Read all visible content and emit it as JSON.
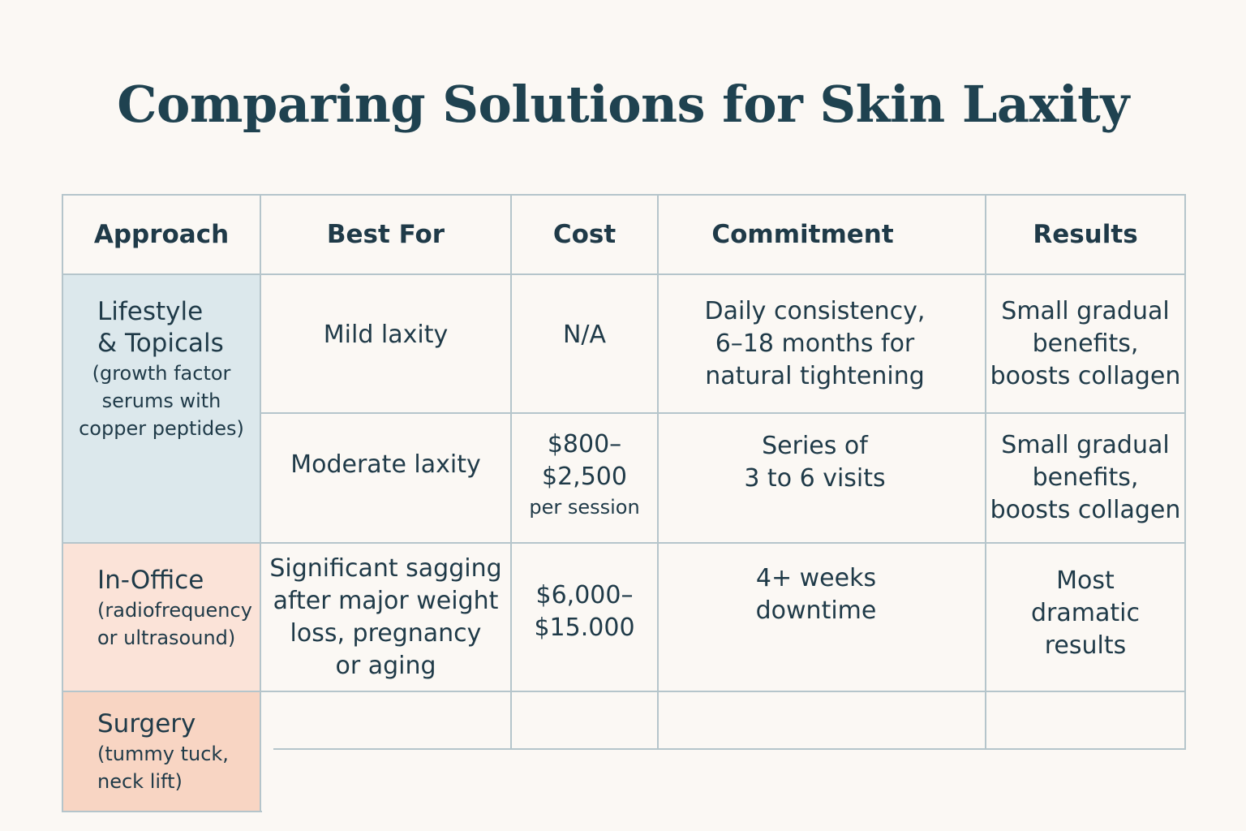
{
  "title": "Comparing Solutions for Skin Laxity",
  "colors": {
    "lifestyle_fill": "#dce8ec",
    "inoffice_fill": "#fbe3d8",
    "surgery_fill": "#f8d5c3",
    "grid": "#b5c5cb",
    "text": "#1f3a48"
  },
  "headers": {
    "approach": "Approach",
    "best_for": "Best For",
    "cost": "Cost",
    "commitment": "Commitment",
    "results": "Results"
  },
  "approaches": {
    "lifestyle": {
      "name": "Lifestyle\n& Topicals",
      "detail": "(growth factor\nserums with\ncopper peptides)"
    },
    "inoffice": {
      "name": "In-Office",
      "detail": "(radiofrequency\nor ultrasound)"
    },
    "surgery": {
      "name": "Surgery",
      "detail": "(tummy tuck,\nneck lift)"
    }
  },
  "rows": [
    {
      "best_for": "Mild laxity",
      "cost": "N/A",
      "commitment": "Daily consistency,\n6–18 months for\nnatural tightening",
      "results": "Small gradual\nbenefits,\nboosts collagen"
    },
    {
      "best_for": "Moderate laxity",
      "cost_main": "$800–\n$2,500",
      "cost_note": "per session",
      "commitment": "Series of\n3 to 6 visits",
      "results": "Small gradual\nbenefits,\nboosts collagen"
    },
    {
      "best_for": "Significant sagging\nafter major weight\nloss, pregnancy\nor aging",
      "cost": "$6,000–\n$15.000",
      "commitment": "4+ weeks\ndowntime",
      "results": "Most\ndramatic\nresults"
    }
  ]
}
